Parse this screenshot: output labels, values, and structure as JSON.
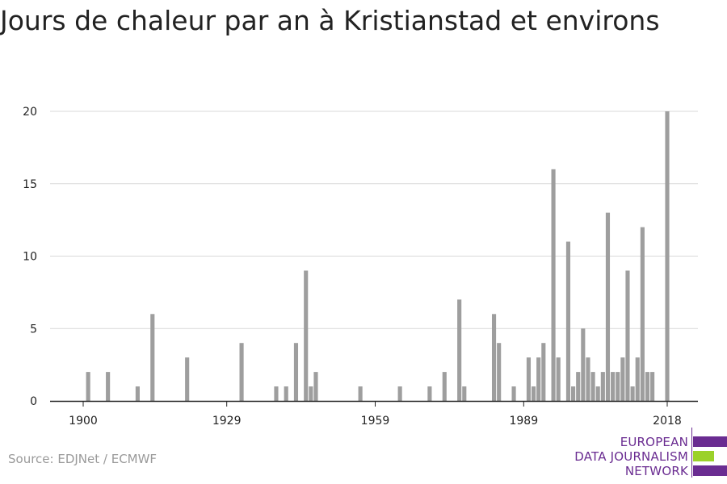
{
  "title": "Jours de chaleur par an à Kristianstad et environs",
  "source": "Source: EDJNet / ECMWF",
  "logo": {
    "line1": "EUROPEAN",
    "line2": "DATA JOURNALISM",
    "line3": "NETWORK",
    "purple": "#6a2c91",
    "green": "#9bd12a"
  },
  "colors": {
    "bar": "#9e9e9e",
    "grid": "#d9d9d9",
    "axis": "#222222"
  },
  "chart_data": {
    "type": "bar",
    "title": "Jours de chaleur par an à Kristianstad et environs",
    "xlabel": "",
    "ylabel": "",
    "xlim": [
      1900,
      2018
    ],
    "ylim": [
      0,
      20
    ],
    "x_ticks": [
      1900,
      1929,
      1959,
      1989,
      2018
    ],
    "y_ticks": [
      0,
      5,
      10,
      15,
      20
    ],
    "grid": true,
    "x": [
      1901,
      1905,
      1911,
      1914,
      1921,
      1932,
      1939,
      1941,
      1943,
      1945,
      1946,
      1947,
      1956,
      1964,
      1970,
      1973,
      1976,
      1977,
      1983,
      1984,
      1987,
      1990,
      1991,
      1992,
      1993,
      1995,
      1996,
      1998,
      1999,
      2000,
      2001,
      2002,
      2003,
      2004,
      2005,
      2006,
      2007,
      2008,
      2009,
      2010,
      2011,
      2012,
      2013,
      2014,
      2015,
      2018
    ],
    "values": [
      2,
      2,
      1,
      6,
      3,
      4,
      1,
      1,
      4,
      9,
      1,
      2,
      1,
      1,
      1,
      2,
      7,
      1,
      6,
      4,
      1,
      3,
      1,
      3,
      4,
      16,
      3,
      11,
      1,
      2,
      5,
      3,
      2,
      1,
      2,
      13,
      2,
      2,
      3,
      9,
      1,
      3,
      12,
      2,
      2,
      20
    ]
  }
}
